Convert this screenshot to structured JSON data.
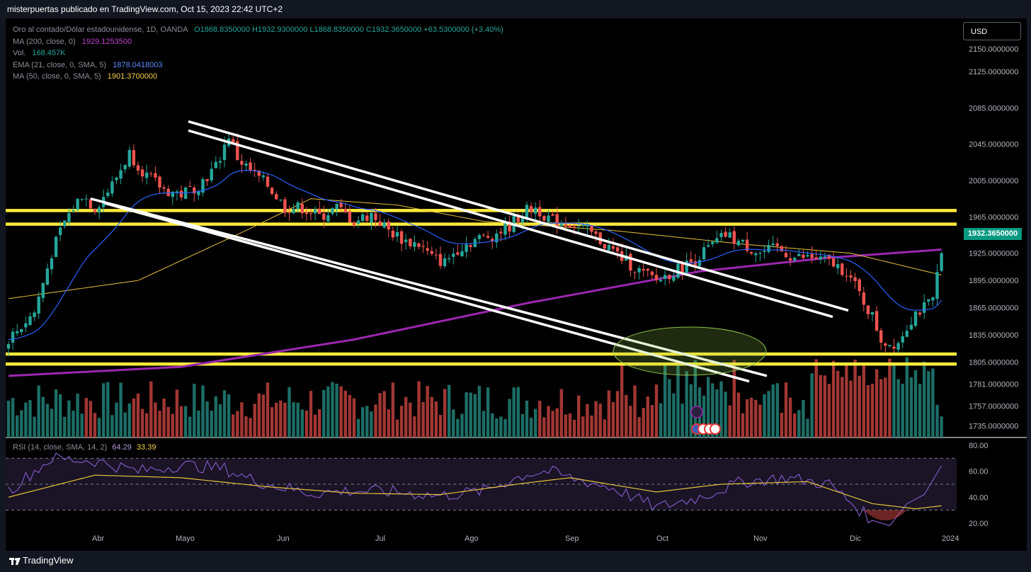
{
  "header": {
    "attribution": "misterpuertas publicado en TradingView.com, Oct 15, 2023 22:42 UTC+2"
  },
  "legend": {
    "symbol": "Oro al contado/Dólar estadounidense, 1D, OANDA",
    "ohlc": "O1868.8350000  H1932.9300000  L1868.8350000  C1932.3650000  +63.5300000 (+3.40%)",
    "ma200_label": "MA (200, close, 0)",
    "ma200_value": "1929.1253500",
    "vol_label": "Vol.",
    "vol_value": "168.457K",
    "ema21_label": "EMA (21, close, 0, SMA, 5)",
    "ema21_value": "1878.0418003",
    "ma50_label": "MA (50, close, 0, SMA, 5)",
    "ma50_value": "1901.3700000"
  },
  "currency_button": "USD",
  "last_price": "1932.3650000",
  "rsi_legend": {
    "label": "RSI (14, close, SMA, 14, 2)",
    "rsi_value": "64.29",
    "ma_value": "33.39"
  },
  "footer": {
    "brand": "TradingView"
  },
  "colors": {
    "up": "#26a69a",
    "down": "#ef5350",
    "ma200": "#9c27b0",
    "ema21": "#2962ff",
    "ma50": "#e6c23a",
    "levels": "#ffeb3b",
    "rsi": "#7e57c2"
  },
  "chart_data": [
    {
      "type": "candlestick",
      "title": "Oro al contado/Dólar estadounidense, 1D, OANDA",
      "ylim": [
        1730,
        2160
      ],
      "y_ticks": [
        "2150.0000000",
        "2125.0000000",
        "2085.0000000",
        "2045.0000000",
        "2005.0000000",
        "1965.0000000",
        "1925.0000000",
        "1895.0000000",
        "1865.0000000",
        "1835.0000000",
        "1805.0000000",
        "1781.0000000",
        "1757.0000000",
        "1735.0000000"
      ],
      "y_tick_values": [
        2150,
        2125,
        2085,
        2045,
        2005,
        1965,
        1925,
        1895,
        1865,
        1835,
        1805,
        1781,
        1757,
        1735
      ],
      "x_ticks": [
        "Abr",
        "Mayo",
        "Jun",
        "Jul",
        "Ago",
        "Sep",
        "Oct",
        "Nov",
        "Dic",
        "2024"
      ],
      "price_path": [
        [
          0,
          1830
        ],
        [
          6,
          1860
        ],
        [
          10,
          1925
        ],
        [
          13,
          1960
        ],
        [
          17,
          1990
        ],
        [
          20,
          1975
        ],
        [
          24,
          2000
        ],
        [
          28,
          2035
        ],
        [
          32,
          2010
        ],
        [
          36,
          1995
        ],
        [
          40,
          1990
        ],
        [
          44,
          2000
        ],
        [
          48,
          2020
        ],
        [
          51,
          2055
        ],
        [
          53,
          2030
        ],
        [
          56,
          2015
        ],
        [
          60,
          2000
        ],
        [
          64,
          1975
        ],
        [
          68,
          1975
        ],
        [
          72,
          1965
        ],
        [
          76,
          1975
        ],
        [
          80,
          1960
        ],
        [
          84,
          1968
        ],
        [
          88,
          1950
        ],
        [
          92,
          1938
        ],
        [
          95,
          1935
        ],
        [
          98,
          1920
        ],
        [
          101,
          1915
        ],
        [
          104,
          1930
        ],
        [
          108,
          1940
        ],
        [
          112,
          1945
        ],
        [
          116,
          1955
        ],
        [
          119,
          1970
        ],
        [
          122,
          1975
        ],
        [
          126,
          1960
        ],
        [
          130,
          1958
        ],
        [
          134,
          1950
        ],
        [
          138,
          1935
        ],
        [
          142,
          1920
        ],
        [
          146,
          1905
        ],
        [
          150,
          1895
        ],
        [
          154,
          1905
        ],
        [
          158,
          1915
        ],
        [
          162,
          1930
        ],
        [
          166,
          1945
        ],
        [
          170,
          1935
        ],
        [
          174,
          1925
        ],
        [
          178,
          1930
        ],
        [
          182,
          1920
        ],
        [
          186,
          1920
        ],
        [
          190,
          1915
        ],
        [
          194,
          1905
        ],
        [
          197,
          1880
        ],
        [
          200,
          1855
        ],
        [
          202,
          1830
        ],
        [
          204,
          1825
        ],
        [
          206,
          1828
        ],
        [
          208,
          1845
        ],
        [
          210,
          1860
        ],
        [
          212,
          1865
        ],
        [
          214,
          1872
        ],
        [
          216,
          1932
        ]
      ],
      "horizontal_levels": [
        1972,
        1957,
        1814,
        1803
      ],
      "ma200_path": [
        [
          0,
          1790
        ],
        [
          40,
          1800
        ],
        [
          80,
          1830
        ],
        [
          120,
          1870
        ],
        [
          160,
          1905
        ],
        [
          190,
          1920
        ],
        [
          216,
          1929
        ]
      ],
      "ma50_path": [
        [
          0,
          1875
        ],
        [
          30,
          1895
        ],
        [
          55,
          1950
        ],
        [
          70,
          1985
        ],
        [
          90,
          1978
        ],
        [
          110,
          1960
        ],
        [
          140,
          1950
        ],
        [
          170,
          1935
        ],
        [
          195,
          1925
        ],
        [
          216,
          1901
        ]
      ],
      "volume": "colored bars, one per day"
    },
    {
      "type": "line",
      "title": "RSI (14, close, SMA, 14, 2)",
      "ylim": [
        15,
        85
      ],
      "y_ticks": [
        "80.00",
        "60.00",
        "40.00",
        "20.00"
      ],
      "y_tick_values": [
        80,
        60,
        40,
        20
      ],
      "band_lines": [
        70,
        50,
        30
      ],
      "rsi_path": [
        [
          0,
          45
        ],
        [
          10,
          70
        ],
        [
          20,
          68
        ],
        [
          30,
          60
        ],
        [
          40,
          65
        ],
        [
          50,
          62
        ],
        [
          55,
          55
        ],
        [
          60,
          50
        ],
        [
          70,
          43
        ],
        [
          80,
          45
        ],
        [
          90,
          44
        ],
        [
          100,
          41
        ],
        [
          110,
          45
        ],
        [
          120,
          58
        ],
        [
          125,
          60
        ],
        [
          130,
          55
        ],
        [
          140,
          47
        ],
        [
          150,
          32
        ],
        [
          160,
          40
        ],
        [
          170,
          52
        ],
        [
          180,
          55
        ],
        [
          190,
          50
        ],
        [
          200,
          22
        ],
        [
          204,
          18
        ],
        [
          208,
          35
        ],
        [
          212,
          42
        ],
        [
          216,
          64.29
        ]
      ],
      "rsi_ma_path": [
        [
          0,
          40
        ],
        [
          20,
          57
        ],
        [
          40,
          55
        ],
        [
          60,
          48
        ],
        [
          80,
          43
        ],
        [
          100,
          42
        ],
        [
          120,
          51
        ],
        [
          130,
          55
        ],
        [
          150,
          44
        ],
        [
          165,
          50
        ],
        [
          185,
          52
        ],
        [
          200,
          35
        ],
        [
          210,
          31
        ],
        [
          216,
          33.39
        ]
      ]
    }
  ]
}
